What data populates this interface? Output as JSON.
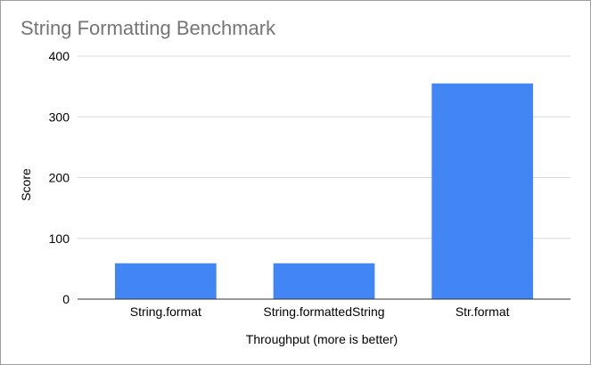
{
  "chart_data": {
    "type": "bar",
    "title": "String Formatting Benchmark",
    "xlabel": "Throughput (more is better)",
    "ylabel": "Score",
    "categories": [
      "String.format",
      "String.formattedString",
      "Str.format"
    ],
    "series": [
      {
        "values": [
          59,
          59,
          355
        ],
        "color": "#4285f4"
      }
    ],
    "ylim": [
      0,
      400
    ],
    "yticks": [
      0,
      100,
      200,
      300,
      400
    ],
    "grid": true,
    "legend": "none"
  }
}
